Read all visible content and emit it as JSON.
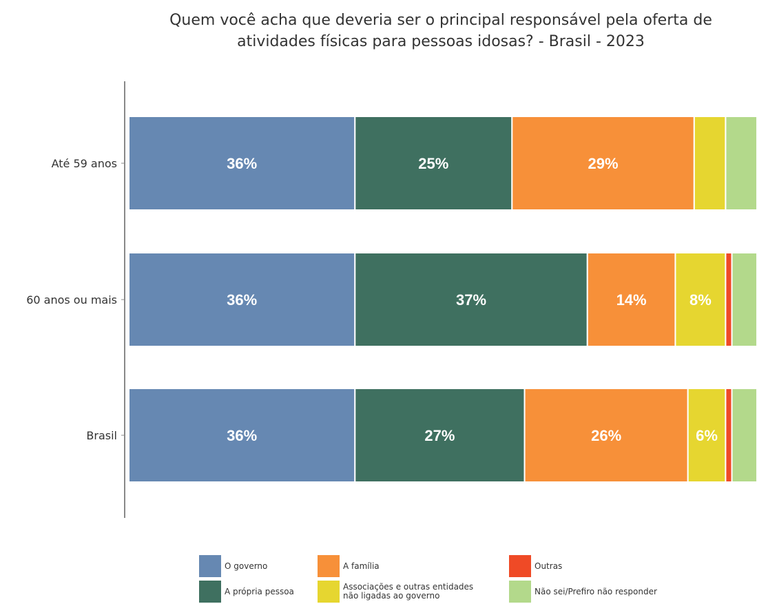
{
  "chart_data": {
    "type": "bar",
    "orientation": "horizontal",
    "stacked": true,
    "title": "Quem você acha que deveria ser o principal responsável pela oferta de atividades físicas para pessoas idosas? - Brasil - 2023",
    "categories": [
      "Até 59 anos",
      "60 anos ou mais",
      "Brasil"
    ],
    "series": [
      {
        "name": "O governo",
        "color": "#6688b2",
        "values": [
          36,
          36,
          36
        ],
        "labels": [
          "36%",
          "36%",
          "36%"
        ]
      },
      {
        "name": "A própria pessoa",
        "color": "#3f7060",
        "values": [
          25,
          37,
          27
        ],
        "labels": [
          "25%",
          "37%",
          "27%"
        ]
      },
      {
        "name": "A família",
        "color": "#f79039",
        "values": [
          29,
          14,
          26
        ],
        "labels": [
          "29%",
          "14%",
          "26%"
        ]
      },
      {
        "name": "Associações e outras entidades\nnão ligadas ao governo",
        "color": "#e6d630",
        "values": [
          5,
          8,
          6
        ],
        "labels": [
          "",
          "8%",
          "6%"
        ]
      },
      {
        "name": "Outras",
        "color": "#ef4a26",
        "values": [
          0,
          1,
          1
        ],
        "labels": [
          "",
          "",
          ""
        ]
      },
      {
        "name": "Não sei/Prefiro não responder",
        "color": "#b3d98b",
        "values": [
          5,
          4,
          4
        ],
        "labels": [
          "",
          "",
          ""
        ]
      }
    ],
    "xlim": [
      0,
      100
    ],
    "grid": false,
    "legend_position": "bottom"
  }
}
